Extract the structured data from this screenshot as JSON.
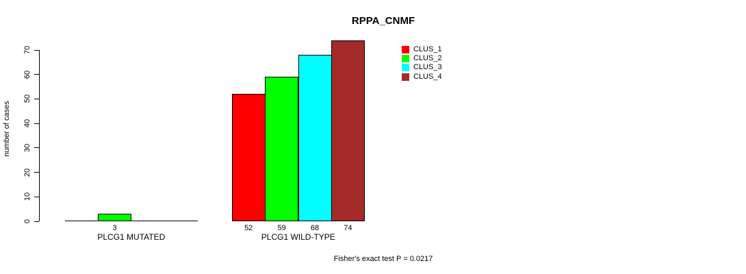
{
  "title": "RPPA_CNMF",
  "y_axis_label": "number of cases",
  "footer": "Fisher's exact test P = 0.0217",
  "chart_data": {
    "type": "bar",
    "grouped": true,
    "title": "RPPA_CNMF",
    "xlabel": "",
    "ylabel": "number of cases",
    "categories": [
      "PLCG1 MUTATED",
      "PLCG1 WILD-TYPE"
    ],
    "series": [
      {
        "name": "CLUS_1",
        "color": "#FF0000",
        "values": [
          0,
          52
        ]
      },
      {
        "name": "CLUS_2",
        "color": "#00FF00",
        "values": [
          3,
          59
        ]
      },
      {
        "name": "CLUS_3",
        "color": "#00FFFF",
        "values": [
          0,
          68
        ]
      },
      {
        "name": "CLUS_4",
        "color": "#A52A2A",
        "values": [
          0,
          74
        ]
      }
    ],
    "bar_value_labels": [
      [
        null,
        3,
        null,
        null
      ],
      [
        52,
        59,
        68,
        74
      ]
    ],
    "yticks": [
      0,
      10,
      20,
      30,
      40,
      50,
      60,
      70
    ],
    "ylim": [
      0,
      70
    ],
    "grid": false,
    "legend_position": "top-right",
    "annotations": [
      "Fisher's exact test P = 0.0217"
    ]
  }
}
